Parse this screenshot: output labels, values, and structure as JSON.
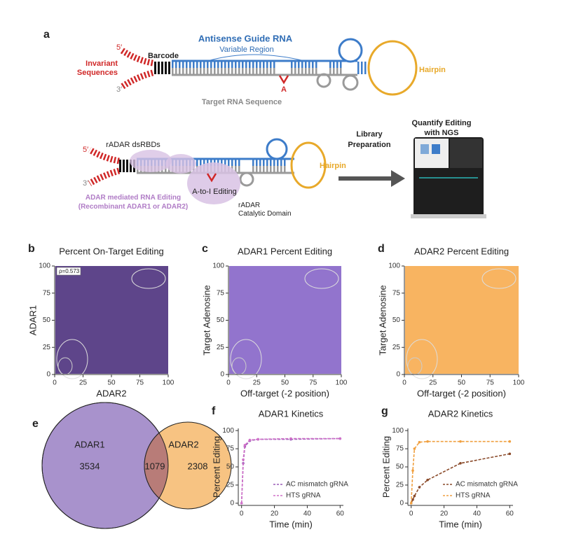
{
  "diagram": {
    "top": {
      "letter": "a",
      "antisense": "Antisense Guide RNA",
      "variable": "Variable Region",
      "barcode": "Barcode",
      "five": "5′",
      "three": "3′",
      "invariant": [
        "Invariant",
        "Sequences"
      ],
      "adenosine": "A",
      "target": "Target RNA Sequence",
      "hairpin": "Hairpin"
    },
    "bottom": {
      "five": "5′",
      "three": "3′",
      "dsrbds": "rADAR dsRBDs",
      "editing": "A-to-I Editing",
      "hairpin": "Hairpin",
      "adar": [
        "ADAR mediated RNA Editing",
        "(Recombinant ADAR1 or ADAR2)"
      ],
      "catalytic": [
        "rADAR",
        "Catalytic Domain"
      ],
      "library": [
        "Library",
        "Preparation"
      ],
      "quantify": [
        "Quantify Editing",
        "with NGS"
      ]
    }
  },
  "chart_data": [
    {
      "panel": "b",
      "type": "scatter",
      "title": "Percent On-Target Editing",
      "x_label": "ADAR2",
      "y_label": "ADAR1",
      "xlim": [
        0,
        100
      ],
      "ylim": [
        0,
        100
      ],
      "xticks": [
        0,
        25,
        50,
        75,
        100
      ],
      "yticks": [
        0,
        25,
        50,
        75,
        100
      ],
      "color": "#3b1c70",
      "annotation": "ρ=0.573"
    },
    {
      "panel": "c",
      "type": "scatter",
      "title": "ADAR1 Percent Editing",
      "x_label": "Off-target (-2 position)",
      "y_label": "Target Adenosine",
      "xlim": [
        0,
        100
      ],
      "ylim": [
        0,
        100
      ],
      "xticks": [
        0,
        25,
        50,
        75,
        100
      ],
      "yticks": [
        0,
        25,
        50,
        75,
        100
      ],
      "color": "#7a55c2"
    },
    {
      "panel": "d",
      "type": "scatter",
      "title": "ADAR2 Percent Editing",
      "x_label": "Off-target (-2 position)",
      "y_label": "Target Adenosine",
      "xlim": [
        0,
        100
      ],
      "ylim": [
        0,
        100
      ],
      "xticks": [
        0,
        25,
        50,
        75,
        100
      ],
      "yticks": [
        0,
        25,
        50,
        75,
        100
      ],
      "color": "#f6a43e"
    },
    {
      "panel": "e",
      "type": "venn",
      "sets": [
        "ADAR1",
        "ADAR2"
      ],
      "values": [
        3534,
        1079,
        2308
      ],
      "colors": [
        "#a892cc",
        "#f7c382"
      ]
    },
    {
      "panel": "f",
      "type": "line",
      "title": "ADAR1 Kinetics",
      "x_label": "Time (min)",
      "y_label": "Percent Editing",
      "x": [
        0,
        1,
        2,
        5,
        10,
        30,
        60
      ],
      "series": [
        {
          "name": "AC mismatch gRNA",
          "color": "#9a5cb8",
          "values": [
            0,
            55,
            78,
            86,
            88,
            88,
            89
          ]
        },
        {
          "name": "HTS gRNA",
          "color": "#d070c8",
          "values": [
            0,
            60,
            80,
            87,
            88,
            89,
            89
          ]
        }
      ],
      "xlim": [
        -2,
        62
      ],
      "ylim": [
        -3,
        103
      ],
      "xticks": [
        0,
        20,
        40,
        60
      ],
      "yticks": [
        0,
        25,
        50,
        75,
        100
      ]
    },
    {
      "panel": "g",
      "type": "line",
      "title": "ADAR2 Kinetics",
      "x_label": "Time (min)",
      "y_label": "Percent Editing",
      "x": [
        0,
        1,
        2,
        5,
        10,
        30,
        60
      ],
      "series": [
        {
          "name": "AC mismatch gRNA",
          "color": "#8a4a2a",
          "values": [
            0,
            5,
            10,
            22,
            32,
            55,
            68
          ]
        },
        {
          "name": "HTS gRNA",
          "color": "#f0a040",
          "values": [
            0,
            45,
            75,
            84,
            85,
            85,
            85
          ]
        }
      ],
      "xlim": [
        -2,
        62
      ],
      "ylim": [
        -3,
        103
      ],
      "xticks": [
        0,
        20,
        40,
        60
      ],
      "yticks": [
        0,
        25,
        50,
        75,
        100
      ]
    }
  ]
}
